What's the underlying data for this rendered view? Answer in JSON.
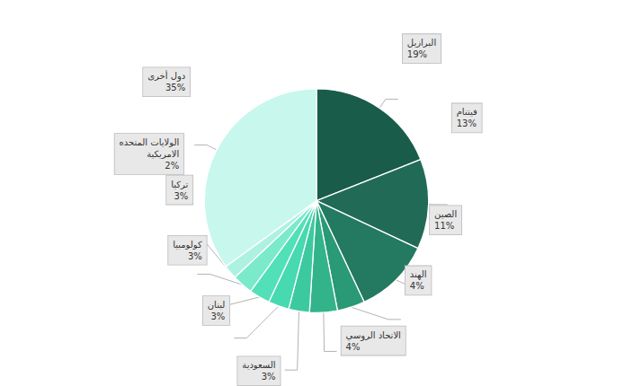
{
  "chart_data": {
    "type": "pie",
    "categories": [
      "البرازيل",
      "فيتنام",
      "الصين",
      "الهند",
      "الاتحاد الروسي",
      "السعودية",
      "لبنان",
      "كولومبيا",
      "تركيا",
      "الولايات المتحده\nالامريكية",
      "دول أخرى"
    ],
    "values": [
      19,
      13,
      11,
      4,
      4,
      3,
      3,
      3,
      3,
      2,
      35
    ],
    "value_labels": [
      "19%",
      "13%",
      "11%",
      "4%",
      "4%",
      "3%",
      "3%",
      "3%",
      "3%",
      "2%",
      "35%"
    ],
    "data_labels": true,
    "colors": [
      "#1a5c4a",
      "#216b56",
      "#237a60",
      "#2a9975",
      "#33b389",
      "#3dc9a0",
      "#47d9b0",
      "#52e0b8",
      "#7aeacb",
      "#adf2e0",
      "#c8f7ee"
    ]
  }
}
